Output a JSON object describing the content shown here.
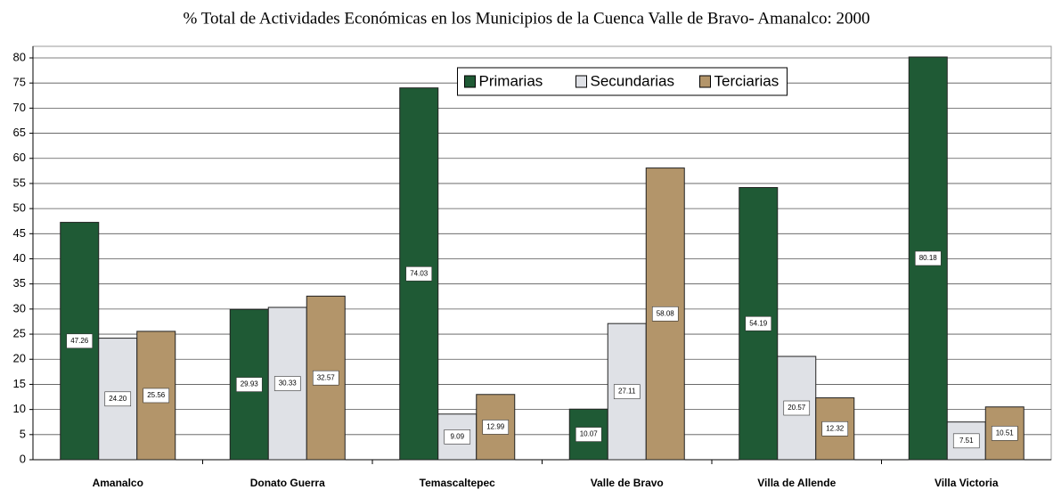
{
  "chart_data": {
    "type": "bar",
    "title": "% Total de Actividades Económicas en los Municipios de la Cuenca Valle de Bravo- Amanalco: 2000",
    "categories": [
      "Amanalco",
      "Donato Guerra",
      "Temascaltepec",
      "Valle de Bravo",
      "Villa de Allende",
      "Villa Victoria"
    ],
    "series": [
      {
        "name": "Primarias",
        "color": "#1f5a35",
        "values": [
          47.26,
          29.93,
          74.03,
          10.07,
          54.19,
          80.18
        ],
        "value_labels": [
          "47.26",
          "29.93",
          "74.03",
          "10.07",
          "54.19",
          "80.18"
        ]
      },
      {
        "name": "Secundarias",
        "color": "#dfe1e6",
        "values": [
          24.2,
          30.33,
          9.09,
          27.11,
          20.57,
          7.51
        ],
        "value_labels": [
          "24.20",
          "30.33",
          "9.09",
          "27.11",
          "20.57",
          "7.51"
        ]
      },
      {
        "name": "Terciarias",
        "color": "#b3956a",
        "values": [
          25.56,
          32.57,
          12.99,
          58.08,
          12.32,
          10.51
        ],
        "value_labels": [
          "25.56",
          "32.57",
          "12.99",
          "58.08",
          "12.32",
          "10.51"
        ]
      }
    ],
    "ylim": [
      0,
      80
    ],
    "yticks": [
      0,
      5,
      10,
      15,
      20,
      25,
      30,
      35,
      40,
      45,
      50,
      55,
      60,
      65,
      70,
      75,
      80
    ],
    "grid": true,
    "legend": "upper center"
  }
}
